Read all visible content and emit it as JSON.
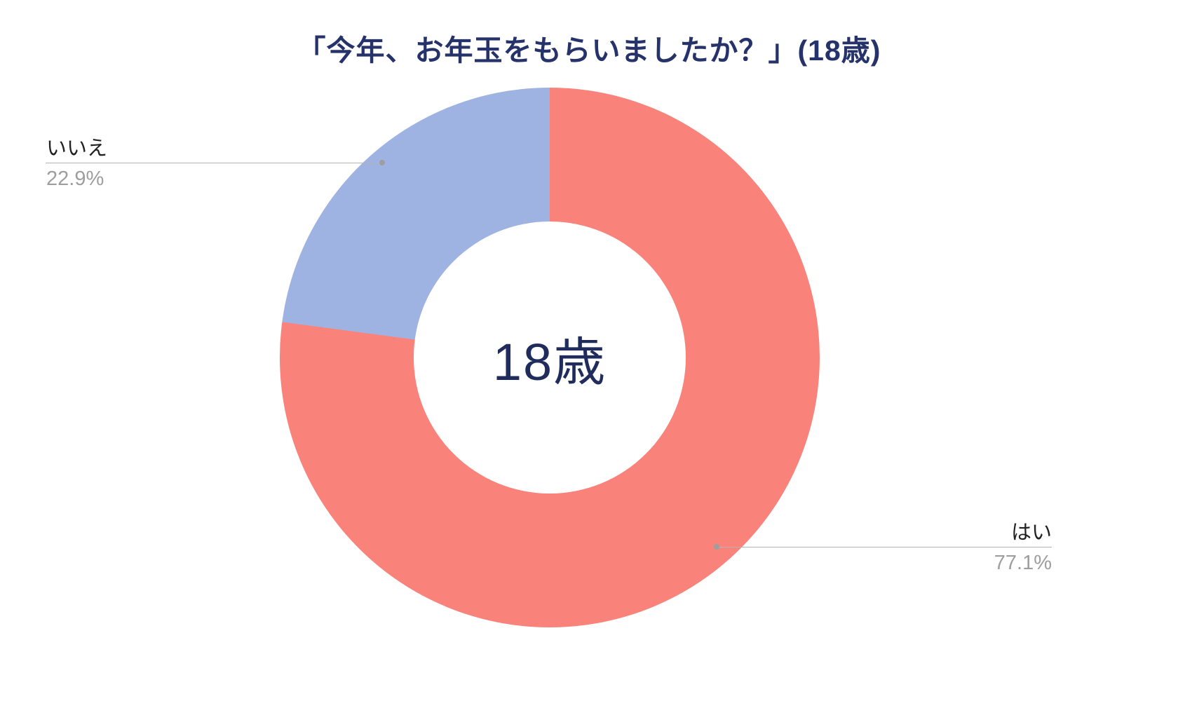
{
  "title": "「今年、お年玉をもらいましたか？」(18歳)",
  "chart_data": {
    "type": "pie",
    "subtype": "donut",
    "title": "「今年、お年玉をもらいましたか？」(18歳)",
    "center_label": "18歳",
    "categories": [
      "はい",
      "いいえ"
    ],
    "values": [
      77.1,
      22.9
    ],
    "colors": [
      "#f9837b",
      "#9fb3e2"
    ],
    "start_angle_deg": 0,
    "direction": "clockwise",
    "legend_position": "callout-labels",
    "labels": [
      {
        "name": "はい",
        "percent": "77.1%"
      },
      {
        "name": "いいえ",
        "percent": "22.9%"
      }
    ],
    "title_color": "#26336b",
    "center_label_color": "#1f2c5c",
    "label_color": "#212121",
    "percent_color": "#9e9e9e"
  }
}
